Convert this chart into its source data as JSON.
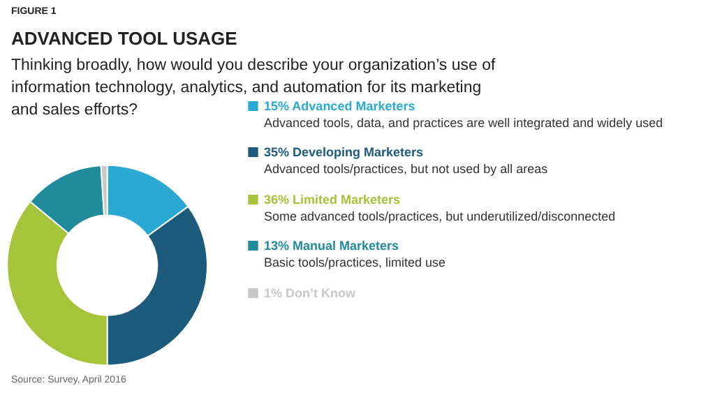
{
  "chart_data": {
    "type": "donut",
    "title": "ADVANCED TOOL USAGE",
    "subtitle": "Thinking broadly, how would you describe your organization’s use of information technology, analytics, and automation for its marketing and sales efforts?",
    "categories": [
      "Advanced Marketers",
      "Developing Marketers",
      "Limited Marketers",
      "Manual Marketers",
      "Don’t Know"
    ],
    "values": [
      15,
      35,
      36,
      13,
      1
    ],
    "value_labels": [
      "15%",
      "35%",
      "36%",
      "13%",
      "1%"
    ],
    "colors": [
      "#2aa9d2",
      "#1c5b7c",
      "#a5c439",
      "#1f8b9b",
      "#c8c8c8"
    ],
    "annotations": [
      "FIGURE 1",
      "Advanced tools, data, and practices are well integrated and widely used",
      "Advanced tools/practices, but not used by all areas",
      "Some advanced tools/practices, but underutilized/disconnected",
      "Basic tools/practices, limited use",
      "Source: Survey, April 2016"
    ],
    "legend": "right"
  }
}
